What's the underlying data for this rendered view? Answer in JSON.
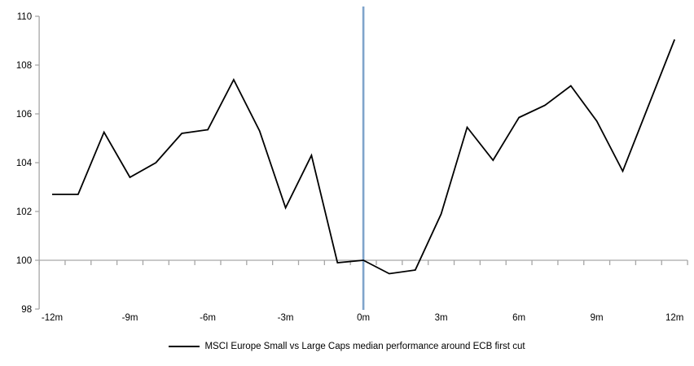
{
  "chart_data": {
    "type": "line",
    "title": "",
    "series": [
      {
        "name": "MSCI Europe Small vs Large Caps median performance around ECB first cut",
        "color": "#000000",
        "x_months": [
          -12,
          -11,
          -10,
          -9,
          -8,
          -7,
          -6,
          -5,
          -4,
          -3,
          -2,
          -1,
          0,
          1,
          2,
          3,
          4,
          5,
          6,
          7,
          8,
          9,
          10,
          11,
          12
        ],
        "values": [
          102.7,
          102.7,
          105.25,
          103.4,
          104.0,
          105.2,
          105.35,
          107.4,
          105.3,
          102.15,
          104.3,
          99.9,
          100.0,
          99.45,
          99.6,
          101.9,
          105.45,
          104.1,
          105.85,
          106.35,
          107.15,
          105.7,
          103.65,
          106.35,
          109.05
        ]
      }
    ],
    "x_tick_months": [
      -12,
      -9,
      -6,
      -3,
      0,
      3,
      6,
      9,
      12
    ],
    "x_tick_labels": [
      "-12m",
      "-9m",
      "-6m",
      "-3m",
      "0m",
      "3m",
      "6m",
      "9m",
      "12m"
    ],
    "y_ticks": [
      98,
      100,
      102,
      104,
      106,
      108,
      110
    ],
    "y_tick_labels": [
      "98",
      "100",
      "102",
      "104",
      "106",
      "108",
      "110"
    ],
    "ylim": [
      98,
      110
    ],
    "xlim_months": [
      -12.5,
      12.5
    ],
    "baseline_value": 100,
    "grid": "baseline-only",
    "legend_position": "bottom-center",
    "event_line": {
      "at_month": 0,
      "color": "#7FA4CB"
    },
    "axis_color": "#A6A6A6",
    "label_color": "#000000"
  }
}
